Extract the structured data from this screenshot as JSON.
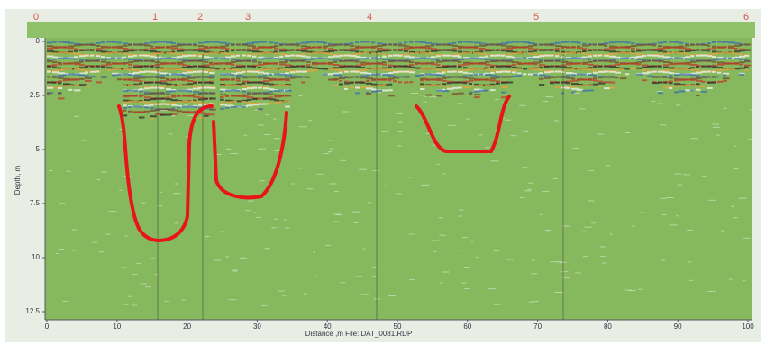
{
  "markers": [
    "0",
    "1",
    "2",
    "3",
    "4",
    "5",
    "6"
  ],
  "x_axis": {
    "ticks": [
      "0",
      "10",
      "20",
      "30",
      "40",
      "50",
      "60",
      "70",
      "80",
      "90",
      "100"
    ],
    "label": "Distance ,m    File: DAT_0081.RDP"
  },
  "y_axis": {
    "ticks": [
      "0",
      "2.5",
      "5",
      "7.5",
      "10",
      "12.5"
    ],
    "label": "Depth, m"
  }
}
